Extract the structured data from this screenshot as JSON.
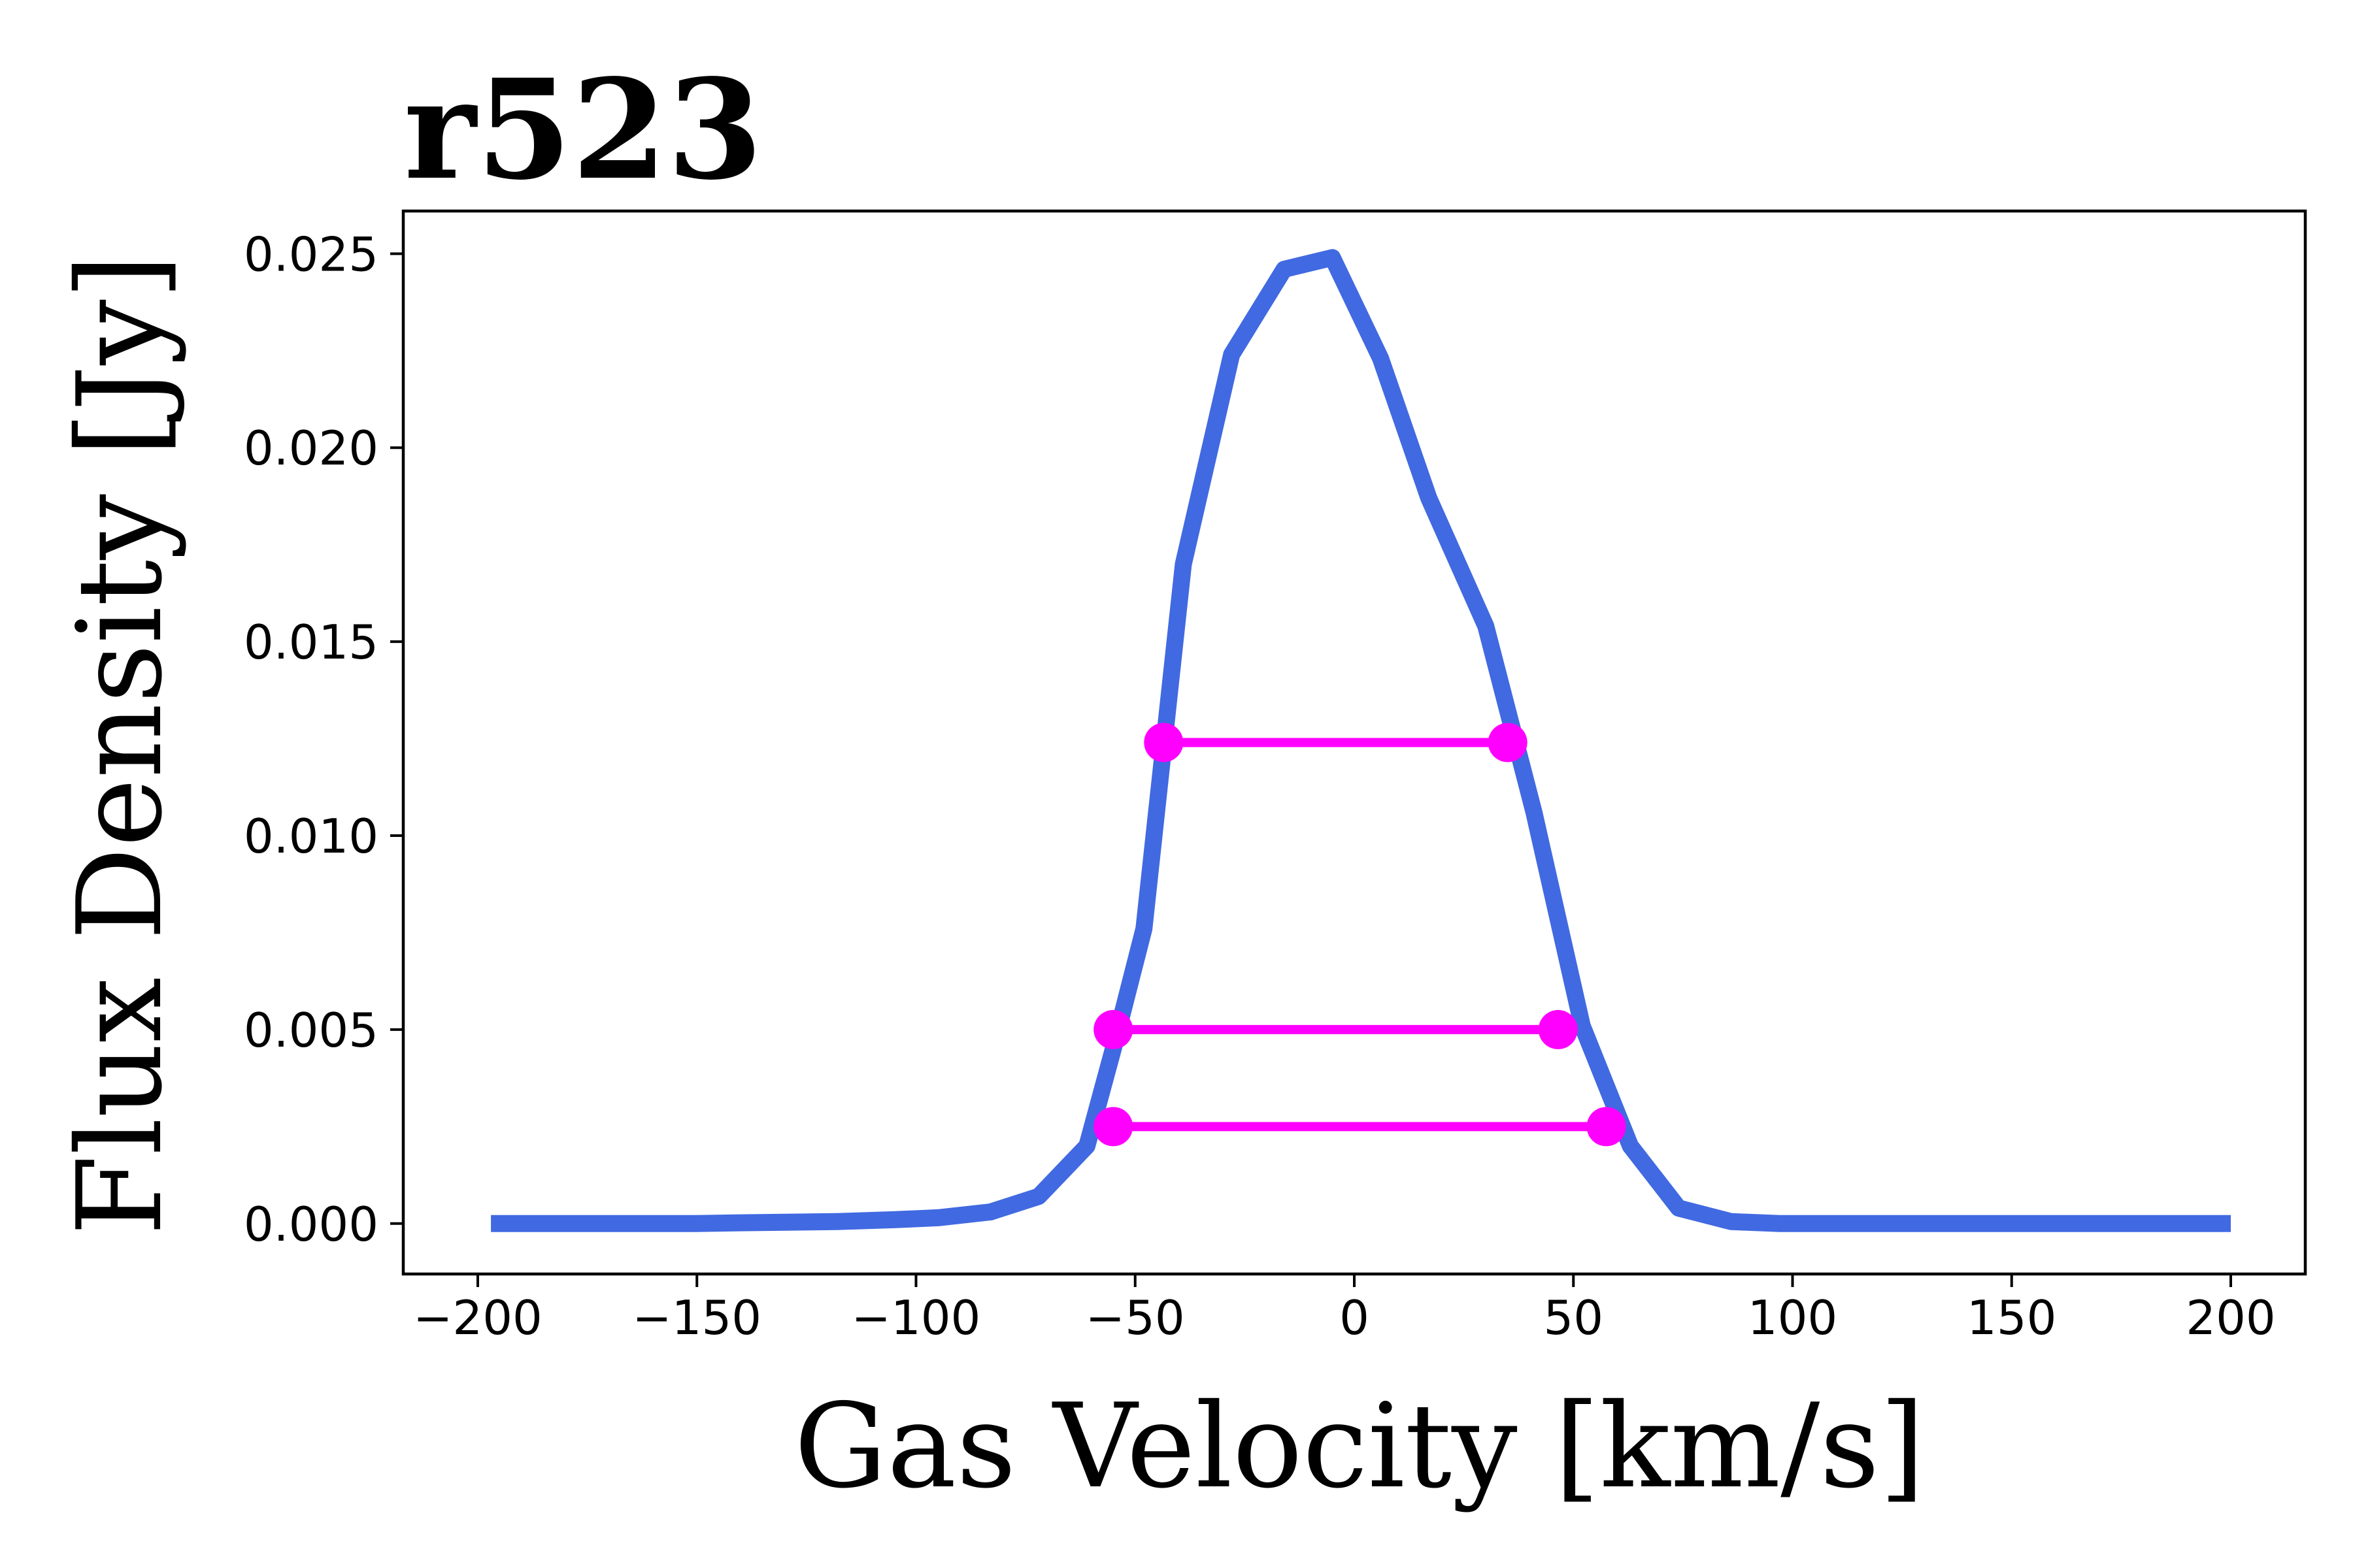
{
  "chart_data": {
    "type": "line",
    "title": "r523",
    "xlabel": "Gas Velocity [km/s]",
    "ylabel": "Flux Density [Jy]",
    "xlim": [
      -217,
      217
    ],
    "ylim": [
      -0.0013,
      0.0261
    ],
    "x_ticks": [
      -200,
      -150,
      -100,
      -50,
      0,
      50,
      100,
      150,
      200
    ],
    "x_tick_labels": [
      "−200",
      "−150",
      "−100",
      "−50",
      "0",
      "50",
      "100",
      "150",
      "200"
    ],
    "y_ticks": [
      0.0,
      0.005,
      0.01,
      0.015,
      0.02,
      0.025
    ],
    "y_tick_labels": [
      "0.000",
      "0.005",
      "0.010",
      "0.015",
      "0.020",
      "0.025"
    ],
    "grid": false,
    "series": [
      {
        "color": "#4169e1",
        "x": [
          -197,
          -150,
          -140,
          -118,
          -105,
          -95,
          -83,
          -72,
          -61,
          -55,
          -48,
          -39,
          -28,
          -16,
          -5,
          6,
          17,
          30,
          41,
          52,
          63,
          74,
          86,
          97,
          108,
          130,
          150,
          200
        ],
        "y": [
          0.0,
          0.0,
          2e-05,
          5e-05,
          0.0001,
          0.00015,
          0.0003,
          0.0007,
          0.002,
          0.0045,
          0.0076,
          0.017,
          0.0224,
          0.0246,
          0.0249,
          0.0223,
          0.0187,
          0.0154,
          0.0106,
          0.0051,
          0.002,
          0.0004,
          5e-05,
          0.0,
          0.0,
          0.0,
          0.0,
          0.0
        ]
      }
    ],
    "width_markers": {
      "color": "#ff00ff",
      "lines": [
        {
          "x1": -43.5,
          "x2": 35,
          "y": 0.0124
        },
        {
          "x1": -55,
          "x2": 46.5,
          "y": 0.005
        },
        {
          "x1": -55,
          "x2": 57.5,
          "y": 0.0025
        }
      ]
    }
  }
}
